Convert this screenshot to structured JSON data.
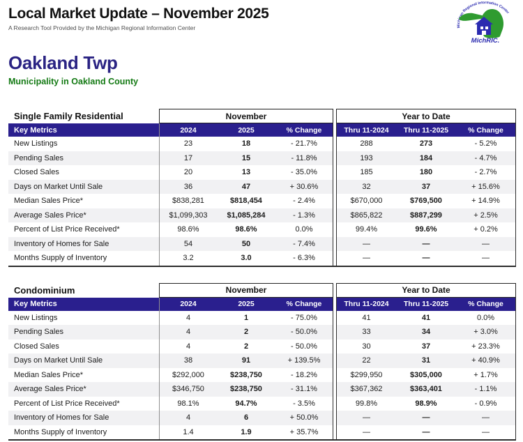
{
  "header": {
    "title": "Local Market Update – November 2025",
    "subtitle": "A Research Tool Provided by the Michigan Regional Information Center",
    "logo": {
      "org_full_name": "Michigan Regional Information Center",
      "org_short_name": "MichRIC."
    }
  },
  "location": {
    "name": "Oakland Twp",
    "subtitle": "Municipality in Oakland County"
  },
  "colors": {
    "header_bar_navy": "#2a1f8e",
    "title_navy": "#2a2383",
    "municipality_green": "#147a14",
    "logo_green": "#2f9b30",
    "logo_blue": "#2b2bb0",
    "stripe_gray": "#f1f1f3",
    "border_dark": "#2b2b2b",
    "border_gray": "#8f8f8f"
  },
  "tables": [
    {
      "section_title": "Single Family Residential",
      "nov_header": "November",
      "ytd_header": "Year to Date",
      "key_metrics_label": "Key Metrics",
      "columns": [
        "2024",
        "2025",
        "% Change",
        "Thru 11-2024",
        "Thru 11-2025",
        "% Change"
      ],
      "rows": [
        {
          "label": "New Listings",
          "nov": [
            "23",
            "18",
            "- 21.7%"
          ],
          "ytd": [
            "288",
            "273",
            "- 5.2%"
          ]
        },
        {
          "label": "Pending Sales",
          "nov": [
            "17",
            "15",
            "- 11.8%"
          ],
          "ytd": [
            "193",
            "184",
            "- 4.7%"
          ]
        },
        {
          "label": "Closed Sales",
          "nov": [
            "20",
            "13",
            "- 35.0%"
          ],
          "ytd": [
            "185",
            "180",
            "- 2.7%"
          ]
        },
        {
          "label": "Days on Market Until Sale",
          "nov": [
            "36",
            "47",
            "+ 30.6%"
          ],
          "ytd": [
            "32",
            "37",
            "+ 15.6%"
          ]
        },
        {
          "label": "Median Sales Price*",
          "nov": [
            "$838,281",
            "$818,454",
            "- 2.4%"
          ],
          "ytd": [
            "$670,000",
            "$769,500",
            "+ 14.9%"
          ]
        },
        {
          "label": "Average Sales Price*",
          "nov": [
            "$1,099,303",
            "$1,085,284",
            "- 1.3%"
          ],
          "ytd": [
            "$865,822",
            "$887,299",
            "+ 2.5%"
          ]
        },
        {
          "label": "Percent of List Price Received*",
          "nov": [
            "98.6%",
            "98.6%",
            "0.0%"
          ],
          "ytd": [
            "99.4%",
            "99.6%",
            "+ 0.2%"
          ]
        },
        {
          "label": "Inventory of Homes for Sale",
          "nov": [
            "54",
            "50",
            "- 7.4%"
          ],
          "ytd": [
            "—",
            "—",
            "—"
          ]
        },
        {
          "label": "Months Supply of Inventory",
          "nov": [
            "3.2",
            "3.0",
            "- 6.3%"
          ],
          "ytd": [
            "—",
            "—",
            "—"
          ]
        }
      ]
    },
    {
      "section_title": "Condominium",
      "nov_header": "November",
      "ytd_header": "Year to Date",
      "key_metrics_label": "Key Metrics",
      "columns": [
        "2024",
        "2025",
        "% Change",
        "Thru 11-2024",
        "Thru 11-2025",
        "% Change"
      ],
      "rows": [
        {
          "label": "New Listings",
          "nov": [
            "4",
            "1",
            "- 75.0%"
          ],
          "ytd": [
            "41",
            "41",
            "0.0%"
          ]
        },
        {
          "label": "Pending Sales",
          "nov": [
            "4",
            "2",
            "- 50.0%"
          ],
          "ytd": [
            "33",
            "34",
            "+ 3.0%"
          ]
        },
        {
          "label": "Closed Sales",
          "nov": [
            "4",
            "2",
            "- 50.0%"
          ],
          "ytd": [
            "30",
            "37",
            "+ 23.3%"
          ]
        },
        {
          "label": "Days on Market Until Sale",
          "nov": [
            "38",
            "91",
            "+ 139.5%"
          ],
          "ytd": [
            "22",
            "31",
            "+ 40.9%"
          ]
        },
        {
          "label": "Median Sales Price*",
          "nov": [
            "$292,000",
            "$238,750",
            "- 18.2%"
          ],
          "ytd": [
            "$299,950",
            "$305,000",
            "+ 1.7%"
          ]
        },
        {
          "label": "Average Sales Price*",
          "nov": [
            "$346,750",
            "$238,750",
            "- 31.1%"
          ],
          "ytd": [
            "$367,362",
            "$363,401",
            "- 1.1%"
          ]
        },
        {
          "label": "Percent of List Price Received*",
          "nov": [
            "98.1%",
            "94.7%",
            "- 3.5%"
          ],
          "ytd": [
            "99.8%",
            "98.9%",
            "- 0.9%"
          ]
        },
        {
          "label": "Inventory of Homes for Sale",
          "nov": [
            "4",
            "6",
            "+ 50.0%"
          ],
          "ytd": [
            "—",
            "—",
            "—"
          ]
        },
        {
          "label": "Months Supply of Inventory",
          "nov": [
            "1.4",
            "1.9",
            "+ 35.7%"
          ],
          "ytd": [
            "—",
            "—",
            "—"
          ]
        }
      ]
    }
  ]
}
